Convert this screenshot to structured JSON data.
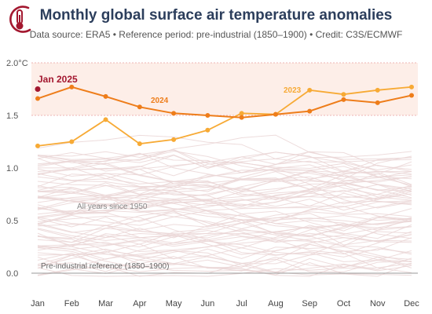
{
  "title": "Monthly global surface air temperature anomalies",
  "subtitle": "Data source: ERA5 • Reference period: pre-industrial (1850–1900) • Credit: C3S/ECMWF",
  "colors": {
    "accent_dark": "#a3172f",
    "series_2024": "#ee7d1a",
    "series_2023": "#f7aa35",
    "background_years": "#ead6d6",
    "band": "#fdeee8",
    "title": "#2c3e5c"
  },
  "chart_data": {
    "type": "line",
    "categories": [
      "Jan",
      "Feb",
      "Mar",
      "Apr",
      "May",
      "Jun",
      "Jul",
      "Aug",
      "Sep",
      "Oct",
      "Nov",
      "Dec"
    ],
    "ylim": [
      0,
      2.0
    ],
    "yticks": [
      "0.0",
      "0.5",
      "1.0",
      "1.5",
      "2.0°C"
    ],
    "grid": false,
    "highlight_band": [
      1.5,
      2.0
    ],
    "series": [
      {
        "name": "2024",
        "values": [
          1.66,
          1.77,
          1.68,
          1.58,
          1.52,
          1.5,
          1.48,
          1.51,
          1.54,
          1.65,
          1.62,
          1.69
        ]
      },
      {
        "name": "2023",
        "values": [
          1.21,
          1.25,
          1.46,
          1.23,
          1.27,
          1.36,
          1.52,
          1.51,
          1.74,
          1.7,
          1.74,
          1.77
        ]
      }
    ],
    "latest_point": {
      "label": "Jan 2025",
      "month": "Jan",
      "value": 1.75
    },
    "annotations": {
      "background_years": "All years since 1950",
      "baseline": "Pre-industrial reference (1850–1900)"
    }
  }
}
